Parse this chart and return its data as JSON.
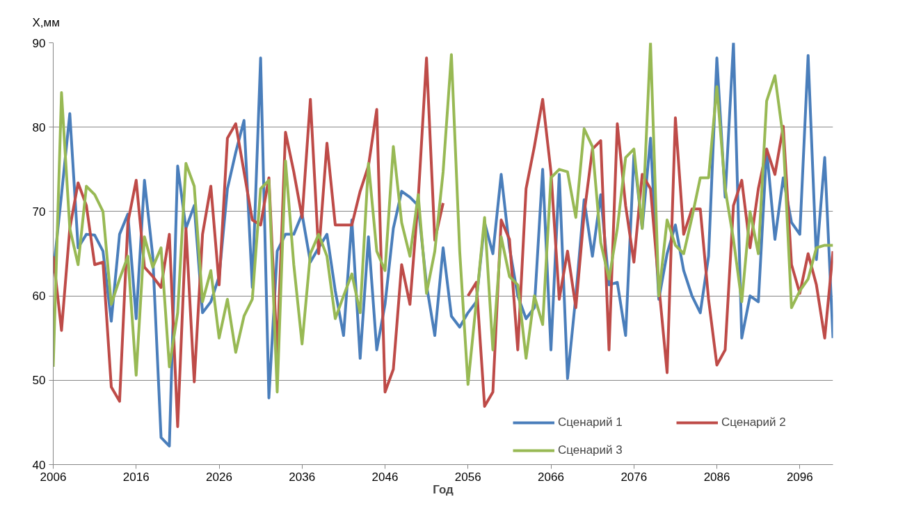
{
  "chart_data": {
    "type": "line",
    "xlabel": "Год",
    "ylabel": "X,мм",
    "x": [
      2006,
      2007,
      2008,
      2009,
      2010,
      2011,
      2012,
      2013,
      2014,
      2015,
      2016,
      2017,
      2018,
      2019,
      2020,
      2021,
      2022,
      2023,
      2024,
      2025,
      2026,
      2027,
      2028,
      2029,
      2030,
      2031,
      2032,
      2033,
      2034,
      2035,
      2036,
      2037,
      2038,
      2039,
      2040,
      2041,
      2042,
      2043,
      2044,
      2045,
      2046,
      2047,
      2048,
      2049,
      2050,
      2051,
      2052,
      2053,
      2054,
      2055,
      2056,
      2057,
      2058,
      2059,
      2060,
      2061,
      2062,
      2063,
      2064,
      2065,
      2066,
      2067,
      2068,
      2069,
      2070,
      2071,
      2072,
      2073,
      2074,
      2075,
      2076,
      2077,
      2078,
      2079,
      2080,
      2081,
      2082,
      2083,
      2084,
      2085,
      2086,
      2087,
      2088,
      2089,
      2090,
      2091,
      2092,
      2093,
      2094,
      2095,
      2096,
      2097,
      2098,
      2099,
      2100
    ],
    "series": [
      {
        "name": "Сценарий 1",
        "color": "#4a7ebb",
        "values": [
          62.7,
          72,
          81.6,
          65.7,
          67.3,
          67.2,
          65.3,
          57,
          67.3,
          69.7,
          57.3,
          73.7,
          64.7,
          43.2,
          42.2,
          75.4,
          68,
          70.7,
          58,
          59.3,
          62.3,
          72.7,
          77,
          80.8,
          61,
          88.2,
          47.9,
          65.3,
          67.3,
          67.3,
          69.7,
          64,
          65.7,
          67.3,
          60.6,
          55.3,
          69,
          52.6,
          67,
          53.6,
          59,
          68,
          72.4,
          71.7,
          70.7,
          61.3,
          55.3,
          65.7,
          57.6,
          56.3,
          58,
          59.3,
          68.7,
          65,
          74.4,
          65.7,
          60,
          57.3,
          58.6,
          75,
          53.6,
          74.4,
          50.2,
          60,
          71.4,
          64.7,
          72,
          61.3,
          61.6,
          55.3,
          76.7,
          68,
          78.7,
          59.6,
          65,
          68.4,
          63,
          60,
          58,
          64.7,
          88.2,
          71.7,
          90,
          55,
          60,
          59.3,
          77.4,
          66.7,
          74,
          68.7,
          67.3,
          88.5,
          64.3,
          76.4,
          55
        ]
      },
      {
        "name": "Сценарий 2",
        "color": "#be4b48",
        "values": [
          64.7,
          55.9,
          68,
          73.4,
          70.7,
          63.7,
          64,
          49.2,
          47.5,
          68.7,
          73.7,
          63.4,
          62.3,
          61,
          67.3,
          44.5,
          68,
          49.8,
          67.3,
          73,
          61.3,
          78.7,
          80.4,
          74.7,
          69,
          68.4,
          74,
          53,
          79.4,
          74.7,
          69.3,
          83.3,
          65,
          78.1,
          68.4,
          68.4,
          68.4,
          72.4,
          75.4,
          82.1,
          48.6,
          51.3,
          63.7,
          59,
          71.5,
          88.2,
          66.6,
          71,
          null,
          null,
          60,
          61.6,
          46.9,
          48.6,
          69,
          66.7,
          53.6,
          72.7,
          77.7,
          83.3,
          74.7,
          59.6,
          65.3,
          58.6,
          69.7,
          77.4,
          78.4,
          53.6,
          80.4,
          70.7,
          64,
          74.4,
          72.7,
          61.3,
          50.9,
          81.1,
          67.3,
          70.3,
          70.3,
          59.6,
          51.8,
          53.6,
          70.7,
          73.7,
          65.7,
          72.7,
          77.4,
          74.4,
          80.1,
          63.7,
          60.3,
          65,
          61.3,
          55,
          65.3
        ]
      },
      {
        "name": "Сценарий 3",
        "color": "#98b954",
        "values": [
          51.6,
          84.1,
          68,
          63.7,
          73,
          72,
          70,
          59,
          62,
          64.7,
          50.6,
          67,
          63.4,
          65.7,
          51.6,
          58,
          75.7,
          73,
          59.3,
          63,
          55,
          59.6,
          53.3,
          57.6,
          59.6,
          72.7,
          73.7,
          48.6,
          76,
          63.7,
          54.3,
          65,
          67.3,
          64.7,
          57.3,
          60,
          62.6,
          58,
          75.7,
          65.3,
          63,
          77.7,
          68.7,
          64.7,
          72,
          60.3,
          65.3,
          74.7,
          88.6,
          65.3,
          49.5,
          59.3,
          69.3,
          53.6,
          67,
          62.3,
          61.3,
          52.6,
          60,
          56.6,
          74,
          75,
          74.7,
          69.3,
          79.8,
          77.7,
          66.3,
          62,
          68,
          76.4,
          77.4,
          68,
          90,
          60,
          69,
          66,
          65,
          69.3,
          74,
          74,
          84.8,
          72.7,
          66.7,
          59.3,
          70,
          65,
          83.1,
          86.1,
          78.7,
          58.6,
          60.6,
          62,
          65.7,
          66,
          66
        ]
      }
    ],
    "xlim": [
      2006,
      2100
    ],
    "xticks": [
      2006,
      2016,
      2026,
      2036,
      2046,
      2056,
      2066,
      2076,
      2086,
      2096
    ],
    "ylim": [
      40,
      90
    ],
    "yticks": [
      40,
      50,
      60,
      70,
      80,
      90
    ],
    "grid": "y",
    "legend": "bottom right",
    "marker": "none",
    "line_style": "solid"
  }
}
